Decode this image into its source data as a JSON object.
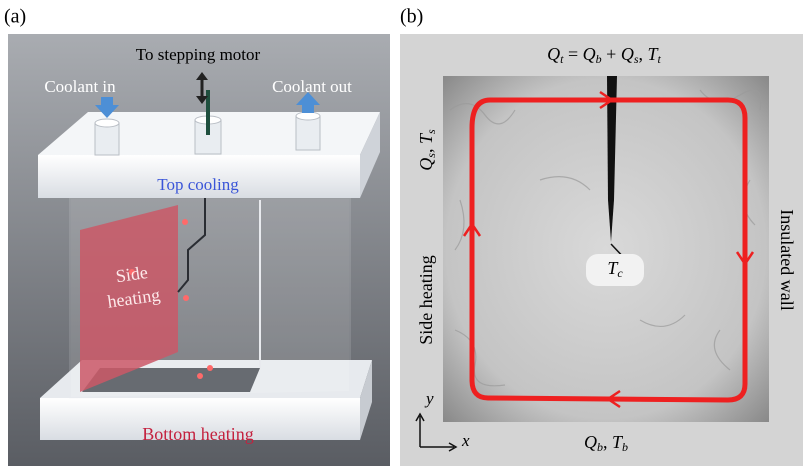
{
  "panel_a": {
    "label": "(a)",
    "motor": "To stepping motor",
    "coolant_in": "Coolant in",
    "coolant_out": "Coolant out",
    "top": "Top cooling",
    "side": [
      "Side",
      "heating"
    ],
    "bottom": "Bottom heating"
  },
  "panel_b": {
    "label": "(b)",
    "top_flux": [
      {
        "base": "Q",
        "sub": "t"
      },
      {
        "base": " = "
      },
      {
        "base": "Q",
        "sub": "b"
      },
      {
        "base": " + "
      },
      {
        "base": "Q",
        "sub": "s"
      },
      {
        "base": ", "
      },
      {
        "base": "T",
        "sub": "t"
      }
    ],
    "side_flux": [
      {
        "base": "Q",
        "sub": "s"
      },
      {
        "base": ", "
      },
      {
        "base": "T",
        "sub": "s"
      }
    ],
    "side": "Side heating",
    "wall": "Insulated wall",
    "center": [
      {
        "base": "T",
        "sub": "c"
      }
    ],
    "bottom_flux": [
      {
        "base": "Q",
        "sub": "b"
      },
      {
        "base": ", "
      },
      {
        "base": "T",
        "sub": "b"
      }
    ],
    "axis_y": "y",
    "axis_x": "x"
  }
}
